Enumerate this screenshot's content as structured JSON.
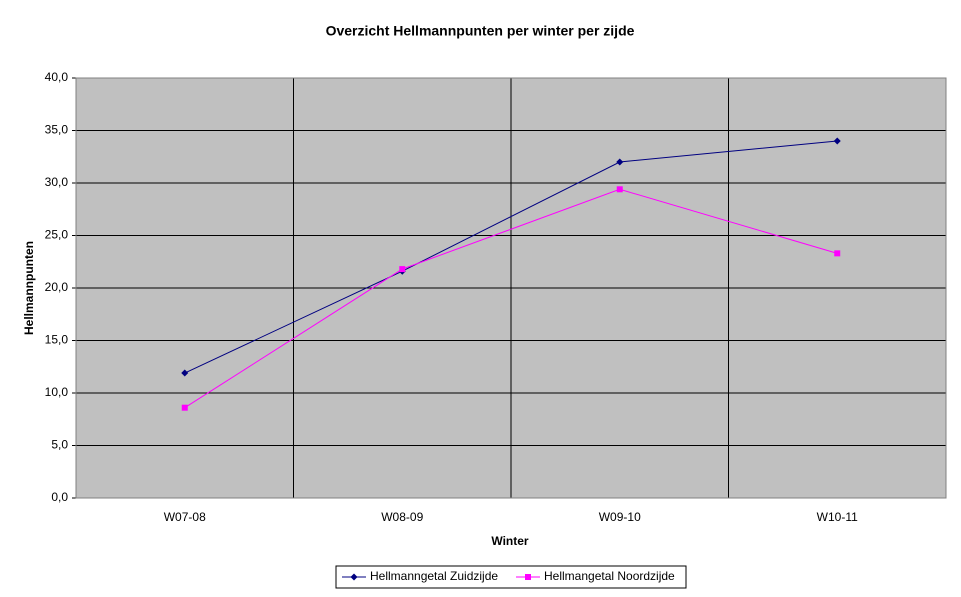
{
  "chart_data": {
    "type": "line",
    "title": "Overzicht Hellmannpunten per winter per zijde",
    "x_label": "Winter",
    "y_label": "Hellmannpunten",
    "categories": [
      "W07-08",
      "W08-09",
      "W09-10",
      "W10-11"
    ],
    "series": [
      {
        "name": "Hellmanngetal Zuidzijde",
        "color": "#000080",
        "marker": "diamond",
        "values": [
          11.9,
          21.6,
          32.0,
          34.0
        ]
      },
      {
        "name": "Hellmangetal Noordzijde",
        "color": "#ff00ff",
        "marker": "square",
        "values": [
          8.6,
          21.8,
          29.4,
          23.3
        ]
      }
    ],
    "ylim": [
      0,
      40
    ],
    "yticks": [
      {
        "value": 0,
        "label": "0,0"
      },
      {
        "value": 5,
        "label": "5,0"
      },
      {
        "value": 10,
        "label": "10,0"
      },
      {
        "value": 15,
        "label": "15,0"
      },
      {
        "value": 20,
        "label": "20,0"
      },
      {
        "value": 25,
        "label": "25,0"
      },
      {
        "value": 30,
        "label": "30,0"
      },
      {
        "value": 35,
        "label": "35,0"
      },
      {
        "value": 40,
        "label": "40,0"
      }
    ],
    "grid": true,
    "legend": "bottom"
  }
}
